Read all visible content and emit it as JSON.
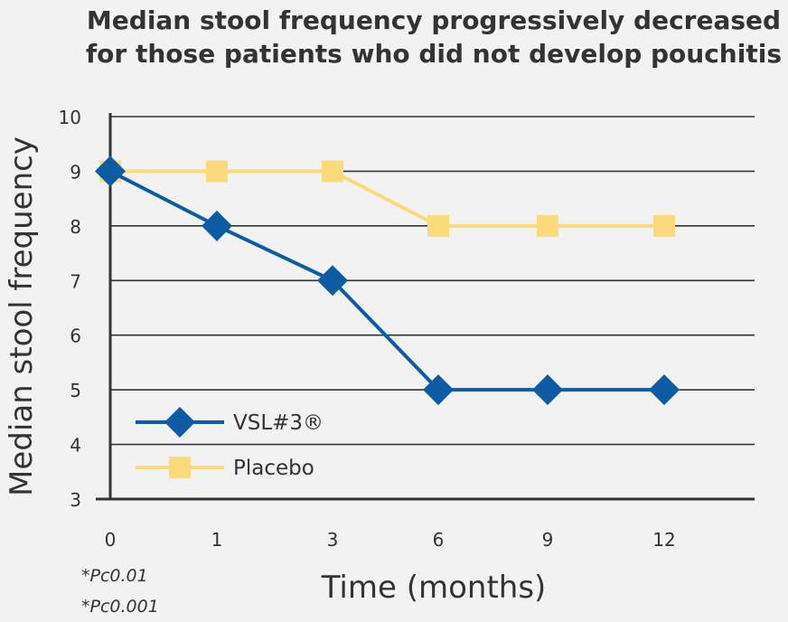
{
  "chart_data": {
    "type": "line",
    "title_lines": [
      "Median stool frequency progressively decreased",
      "for those patients who did not develop pouchitis"
    ],
    "xlabel": "Time (months)",
    "ylabel": "Median stool frequency",
    "categories": [
      "0",
      "1",
      "3",
      "6",
      "9",
      "12"
    ],
    "yticks": [
      3,
      4,
      5,
      6,
      7,
      8,
      9,
      10
    ],
    "ylim": [
      3,
      10
    ],
    "grid": true,
    "legend_position": "bottom-left",
    "series": [
      {
        "name": "VSL#3®",
        "values": [
          9,
          8,
          7,
          5,
          5,
          5
        ],
        "color": "#0d5ca3",
        "marker": "diamond"
      },
      {
        "name": "Placebo",
        "values": [
          9,
          9,
          9,
          8,
          8,
          8
        ],
        "color": "#fada7a",
        "marker": "square"
      }
    ],
    "footnotes": [
      "*Pc0.01",
      "*Pc0.001"
    ]
  }
}
